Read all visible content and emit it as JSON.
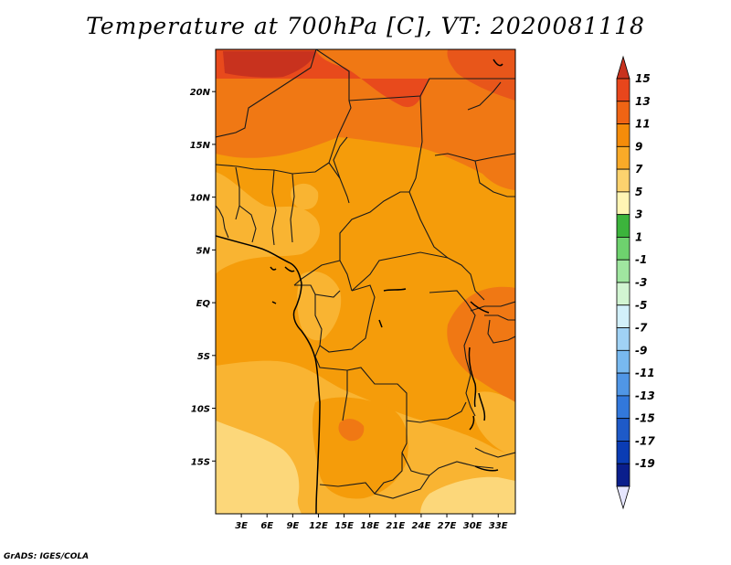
{
  "title": "Temperature at 700hPa [C], VT: 2020081118",
  "credit": "GrADS: IGES/COLA",
  "lat_labels": [
    "20N",
    "15N",
    "10N",
    "5N",
    "EQ",
    "5S",
    "10S",
    "15S"
  ],
  "lon_labels": [
    "3E",
    "6E",
    "9E",
    "12E",
    "15E",
    "18E",
    "21E",
    "24E",
    "27E",
    "30E",
    "33E"
  ],
  "colorbar": {
    "labels": [
      "15",
      "13",
      "11",
      "9",
      "7",
      "5",
      "3",
      "1",
      "-1",
      "-3",
      "-5",
      "-7",
      "-9",
      "-11",
      "-13",
      "-15",
      "-17",
      "-19"
    ],
    "colors": [
      "#c8321e",
      "#e8461c",
      "#f06414",
      "#f58c0a",
      "#f9aa28",
      "#fcd26e",
      "#fff5b4",
      "#3cb43c",
      "#6ed26e",
      "#a0e6a0",
      "#d2f5d2",
      "#d2f0fa",
      "#a0d2f5",
      "#78b9f0",
      "#5096e6",
      "#3278dc",
      "#1e5ac8",
      "#0a3cb4",
      "#0a1e8c",
      "#e6e6ff"
    ]
  },
  "chart_data": {
    "type": "heatmap",
    "variable": "Temperature at 700hPa",
    "units": "C",
    "valid_time": "2020081118",
    "lon_range": [
      0,
      35
    ],
    "lat_range": [
      -20,
      24
    ],
    "contour_levels": [
      -19,
      -17,
      -15,
      -13,
      -11,
      -9,
      -7,
      -5,
      -3,
      -1,
      1,
      3,
      5,
      7,
      9,
      11,
      13,
      15
    ]
  }
}
